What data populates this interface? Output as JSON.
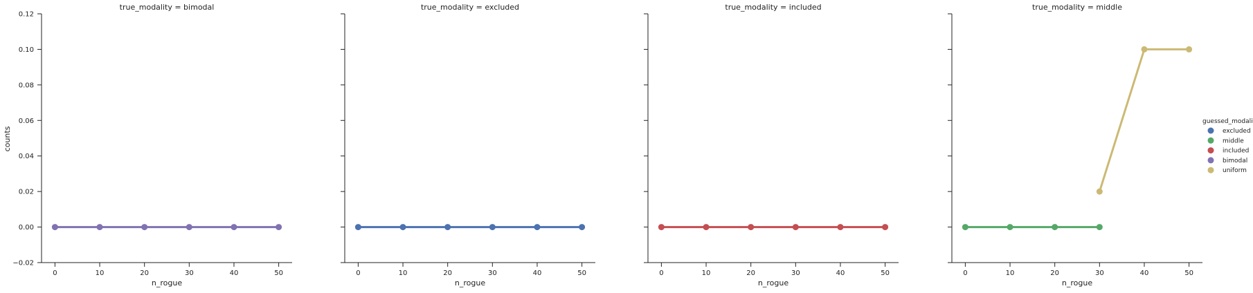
{
  "chart_data": {
    "type": "line",
    "ylabel": "counts",
    "xlabel": "n_rogue",
    "ylim": [
      -0.02,
      0.12
    ],
    "yticks": [
      "−0.02",
      "0.00",
      "0.02",
      "0.04",
      "0.06",
      "0.08",
      "0.10",
      "0.12"
    ],
    "yticks_values": [
      -0.02,
      0.0,
      0.02,
      0.04,
      0.06,
      0.08,
      0.1,
      0.12
    ],
    "xticks": [
      "0",
      "10",
      "20",
      "30",
      "40",
      "50"
    ],
    "xticks_values": [
      0,
      10,
      20,
      30,
      40,
      50
    ],
    "xlim": [
      -3,
      53
    ],
    "grid": false,
    "legend": {
      "title": "guessed_modality",
      "placement": "right",
      "entries": [
        {
          "name": "excluded",
          "color": "#4c72b0"
        },
        {
          "name": "middle",
          "color": "#55a868"
        },
        {
          "name": "included",
          "color": "#c44e52"
        },
        {
          "name": "bimodal",
          "color": "#8172b2"
        },
        {
          "name": "uniform",
          "color": "#ccb974"
        }
      ]
    },
    "facets": [
      {
        "title": "true_modality = bimodal",
        "series": [
          {
            "name": "bimodal",
            "color": "#8172b2",
            "x": [
              0,
              10,
              20,
              30,
              40,
              50
            ],
            "y": [
              0,
              0,
              0,
              0,
              0,
              0
            ]
          }
        ]
      },
      {
        "title": "true_modality = excluded",
        "series": [
          {
            "name": "excluded",
            "color": "#4c72b0",
            "x": [
              0,
              10,
              20,
              30,
              40,
              50
            ],
            "y": [
              0,
              0,
              0,
              0,
              0,
              0
            ]
          }
        ]
      },
      {
        "title": "true_modality = included",
        "series": [
          {
            "name": "included",
            "color": "#c44e52",
            "x": [
              0,
              10,
              20,
              30,
              40,
              50
            ],
            "y": [
              0,
              0,
              0,
              0,
              0,
              0
            ]
          }
        ]
      },
      {
        "title": "true_modality = middle",
        "series": [
          {
            "name": "middle",
            "color": "#55a868",
            "x": [
              0,
              10,
              20,
              30
            ],
            "y": [
              0,
              0,
              0,
              0
            ]
          },
          {
            "name": "uniform",
            "color": "#ccb974",
            "x": [
              30,
              40,
              50
            ],
            "y": [
              0.02,
              0.1,
              0.1
            ]
          }
        ]
      }
    ]
  }
}
